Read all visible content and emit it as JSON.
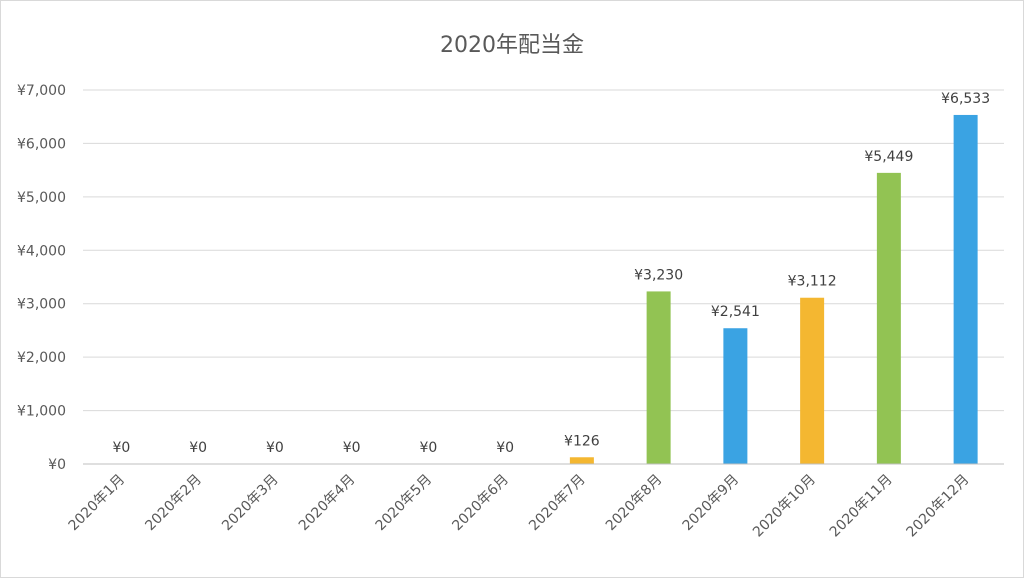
{
  "chart_data": {
    "type": "bar",
    "title": "2020年配当金",
    "xlabel": "",
    "ylabel": "",
    "ylim": [
      0,
      7000
    ],
    "yticks": [
      0,
      1000,
      2000,
      3000,
      4000,
      5000,
      6000,
      7000
    ],
    "ytick_labels": [
      "¥0",
      "¥1,000",
      "¥2,000",
      "¥3,000",
      "¥4,000",
      "¥5,000",
      "¥6,000",
      "¥7,000"
    ],
    "grid": true,
    "legend": "none",
    "categories": [
      "2020年1月",
      "2020年2月",
      "2020年3月",
      "2020年4月",
      "2020年5月",
      "2020年6月",
      "2020年7月",
      "2020年8月",
      "2020年9月",
      "2020年10月",
      "2020年11月",
      "2020年12月"
    ],
    "values": [
      0,
      0,
      0,
      0,
      0,
      0,
      126,
      3230,
      2541,
      3112,
      5449,
      6533
    ],
    "data_labels": [
      "¥0",
      "¥0",
      "¥0",
      "¥0",
      "¥0",
      "¥0",
      "¥126",
      "¥3,230",
      "¥2,541",
      "¥3,112",
      "¥5,449",
      "¥6,533"
    ],
    "colors": [
      "#f4b731",
      "#92c353",
      "#3aa3e3",
      "#f4b731",
      "#92c353",
      "#3aa3e3",
      "#f4b731",
      "#92c353",
      "#3aa3e3",
      "#f4b731",
      "#92c353",
      "#3aa3e3"
    ]
  }
}
